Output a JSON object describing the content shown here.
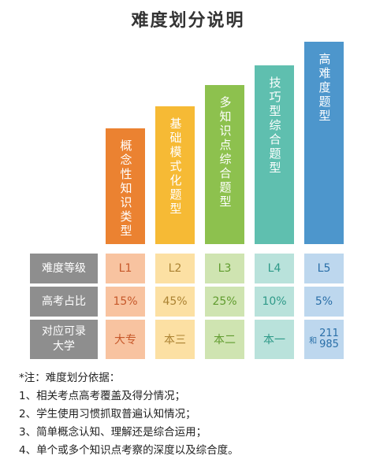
{
  "title": "难度划分说明",
  "bars": [
    {
      "label": "概念性知识类型",
      "color": "#EB8231"
    },
    {
      "label": "基础模式化题型",
      "color": "#F6BA35"
    },
    {
      "label": "多知识点综合题型",
      "color": "#8DC14E"
    },
    {
      "label": "技巧型综合题型",
      "color": "#5FBFAF"
    },
    {
      "label": "高难度题型",
      "color": "#4D96CC"
    }
  ],
  "rows": {
    "level": {
      "header": "难度等级",
      "cells": [
        "L1",
        "L2",
        "L3",
        "L4",
        "L5"
      ]
    },
    "ratio": {
      "header": "高考占比",
      "cells": [
        "15%",
        "45%",
        "25%",
        "10%",
        "5%"
      ]
    },
    "school": {
      "header_line1": "对应可录",
      "header_line2": "大学",
      "cells": [
        "大专",
        "本三",
        "本二",
        "本一"
      ],
      "l5_prefix": "和",
      "l5_num1": "211",
      "l5_num2": "985"
    }
  },
  "cell_colors": {
    "bg": [
      "#F8C3A0",
      "#FCE0A3",
      "#CFE4B1",
      "#B9E2DB",
      "#BDD7EE"
    ],
    "text": [
      "#C6582A",
      "#AB8232",
      "#609B2E",
      "#2E9988",
      "#2A6FA8"
    ],
    "header_bg": "#8E8E8E"
  },
  "notes": [
    "*注：难度划分依据：",
    "1、相关考点高考覆盖及得分情况；",
    "2、学生使用习惯抓取普遍认知情况；",
    "3、简单概念认知、理解还是综合运用；",
    "4、单个或多个知识点考察的深度以及综合度。"
  ]
}
